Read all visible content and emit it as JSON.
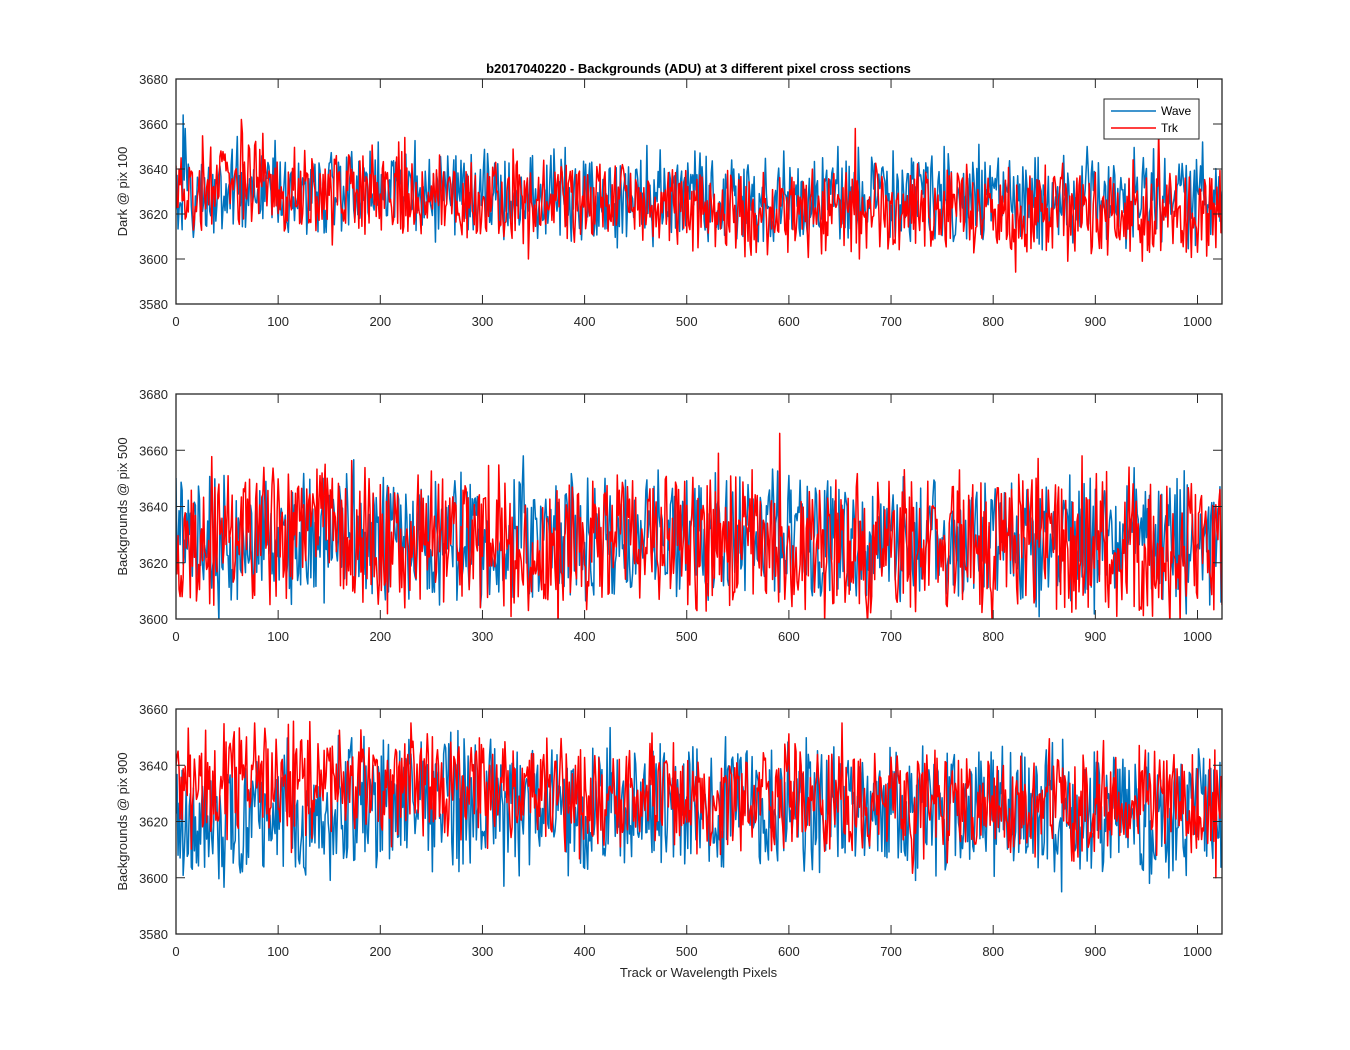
{
  "figure": {
    "title": "b2017040220 - Backgrounds (ADU) at 3 different pixel cross sections",
    "xlabel": "Track or Wavelength Pixels"
  },
  "chart_data": [
    {
      "type": "line",
      "title": "b2017040220 - Backgrounds (ADU) at 3 different pixel cross sections",
      "xlabel": "",
      "ylabel": "Dark @ pix 100",
      "xlim": [
        0,
        1024
      ],
      "ylim": [
        3580,
        3680
      ],
      "xticks": [
        0,
        100,
        200,
        300,
        400,
        500,
        600,
        700,
        800,
        900,
        1000
      ],
      "yticks": [
        3580,
        3600,
        3620,
        3640,
        3660,
        3680
      ],
      "grid": false,
      "legend": "top-right",
      "x": "pixel index 0..1024",
      "series": [
        {
          "name": "Wave",
          "color": "#0072BD",
          "segments": [
            [
              0,
              3628
            ],
            [
              100,
              3629
            ],
            [
              200,
              3630
            ],
            [
              300,
              3629
            ],
            [
              400,
              3628
            ],
            [
              500,
              3628
            ],
            [
              600,
              3627
            ],
            [
              700,
              3628
            ],
            [
              800,
              3627
            ],
            [
              900,
              3627
            ],
            [
              1024,
              3626
            ]
          ],
          "noise": 6.5,
          "seed": 11,
          "spikes": [
            [
              7,
              3664
            ],
            [
              9,
              3658
            ],
            [
              198,
              3652
            ],
            [
              347,
              3645
            ],
            [
              367,
              3646
            ],
            [
              508,
              3648
            ],
            [
              595,
              3648
            ],
            [
              648,
              3650
            ],
            [
              752,
              3650
            ],
            [
              892,
              3650
            ],
            [
              957,
              3649
            ],
            [
              1005,
              3652
            ]
          ]
        },
        {
          "name": "Trk",
          "color": "#FF0000",
          "segments": [
            [
              0,
              3630
            ],
            [
              60,
              3634
            ],
            [
              100,
              3631
            ],
            [
              200,
              3629
            ],
            [
              300,
              3627
            ],
            [
              400,
              3625
            ],
            [
              500,
              3623
            ],
            [
              600,
              3622
            ],
            [
              700,
              3622
            ],
            [
              800,
              3621
            ],
            [
              900,
              3620
            ],
            [
              1024,
              3620
            ]
          ],
          "noise": 6.5,
          "seed": 29,
          "spikes": [
            [
              64,
              3662
            ],
            [
              218,
              3652
            ],
            [
              224,
              3654
            ],
            [
              345,
              3600
            ],
            [
              557,
              3601
            ],
            [
              665,
              3658
            ],
            [
              669,
              3600
            ],
            [
              873,
              3599
            ],
            [
              946,
              3599
            ],
            [
              962,
              3657
            ]
          ]
        }
      ]
    },
    {
      "type": "line",
      "title": "",
      "xlabel": "",
      "ylabel": "Backgrounds @ pix 500",
      "xlim": [
        0,
        1024
      ],
      "ylim": [
        3600,
        3680
      ],
      "xticks": [
        0,
        100,
        200,
        300,
        400,
        500,
        600,
        700,
        800,
        900,
        1000
      ],
      "yticks": [
        3600,
        3620,
        3640,
        3660,
        3680
      ],
      "grid": false,
      "x": "pixel index 0..1024",
      "series": [
        {
          "name": "Wave",
          "color": "#0072BD",
          "segments": [
            [
              0,
              3628
            ],
            [
              100,
              3628
            ],
            [
              200,
              3628
            ],
            [
              300,
              3628
            ],
            [
              400,
              3628
            ],
            [
              500,
              3628
            ],
            [
              600,
              3628
            ],
            [
              700,
              3628
            ],
            [
              800,
              3628
            ],
            [
              900,
              3628
            ],
            [
              1024,
              3628
            ]
          ],
          "noise": 7,
          "seed": 41,
          "spikes": [
            [
              47,
              3651
            ],
            [
              144,
              3650
            ],
            [
              340,
              3658
            ],
            [
              420,
              3650
            ],
            [
              528,
              3652
            ],
            [
              600,
              3651
            ],
            [
              1022,
              3647
            ],
            [
              1023,
              3606
            ]
          ]
        },
        {
          "name": "Trk",
          "color": "#FF0000",
          "segments": [
            [
              0,
              3628
            ],
            [
              100,
              3630
            ],
            [
              150,
              3634
            ],
            [
              200,
              3628
            ],
            [
              300,
              3628
            ],
            [
              400,
              3627
            ],
            [
              500,
              3627
            ],
            [
              600,
              3627
            ],
            [
              700,
              3627
            ],
            [
              800,
              3626
            ],
            [
              900,
              3626
            ],
            [
              1024,
              3625
            ]
          ],
          "noise": 7.5,
          "seed": 53,
          "spikes": [
            [
              146,
              3655
            ],
            [
              345,
              3603
            ],
            [
              408,
              3649
            ],
            [
              510,
              3603
            ],
            [
              591,
              3666
            ],
            [
              596,
              3607
            ],
            [
              736,
              3649
            ],
            [
              887,
              3658
            ],
            [
              956,
              3601
            ],
            [
              1022,
              3646
            ],
            [
              1024,
              3605
            ]
          ]
        }
      ]
    },
    {
      "type": "line",
      "title": "",
      "xlabel": "Track or Wavelength Pixels",
      "ylabel": "Backgrounds @ pix 900",
      "xlim": [
        0,
        1024
      ],
      "ylim": [
        3580,
        3660
      ],
      "xticks": [
        0,
        100,
        200,
        300,
        400,
        500,
        600,
        700,
        800,
        900,
        1000
      ],
      "yticks": [
        3580,
        3600,
        3620,
        3640,
        3660
      ],
      "grid": false,
      "x": "pixel index 0..1024",
      "series": [
        {
          "name": "Wave",
          "color": "#0072BD",
          "segments": [
            [
              0,
              3620
            ],
            [
              100,
              3623
            ],
            [
              200,
              3625
            ],
            [
              300,
              3626
            ],
            [
              400,
              3626
            ],
            [
              500,
              3626
            ],
            [
              600,
              3626
            ],
            [
              700,
              3625
            ],
            [
              800,
              3624
            ],
            [
              900,
              3623
            ],
            [
              1024,
              3624
            ]
          ],
          "noise": 7,
          "seed": 67,
          "spikes": [
            [
              2,
              3608
            ],
            [
              321,
              3597
            ],
            [
              467,
              3645
            ],
            [
              854,
              3640
            ],
            [
              867,
              3595
            ],
            [
              953,
              3598
            ],
            [
              1022,
              3641
            ]
          ]
        },
        {
          "name": "Trk",
          "color": "#FF0000",
          "segments": [
            [
              0,
              3633
            ],
            [
              80,
              3636
            ],
            [
              200,
              3633
            ],
            [
              300,
              3631
            ],
            [
              400,
              3629
            ],
            [
              500,
              3628
            ],
            [
              600,
              3628
            ],
            [
              700,
              3626
            ],
            [
              800,
              3626
            ],
            [
              900,
              3627
            ],
            [
              1024,
              3626
            ]
          ],
          "noise": 6.5,
          "seed": 79,
          "spikes": [
            [
              77,
              3655
            ],
            [
              230,
              3655
            ],
            [
              652,
              3655
            ],
            [
              877,
              3606
            ],
            [
              943,
              3647
            ],
            [
              1018,
              3600
            ]
          ]
        }
      ]
    }
  ]
}
